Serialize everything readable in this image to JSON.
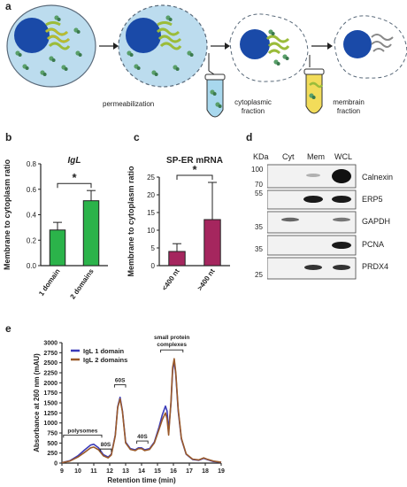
{
  "panels": {
    "a": "a",
    "b": "b",
    "c": "c",
    "d": "d",
    "e": "e"
  },
  "panel_a": {
    "steps": [
      "permeabilization",
      "cytoplasmic fraction",
      "membrain fraction"
    ],
    "colors": {
      "cell": "#bcdcee",
      "nucleus": "#1a4aa8",
      "er": "#9bbc3a",
      "cyto_tube": "#a8d8ee",
      "mem_tube": "#f2dc5a"
    }
  },
  "chart_data": [
    {
      "type": "bar",
      "title": "IgL",
      "ylabel": "Membrane to cytoplasm ratio",
      "categories": [
        "1 domain",
        "2 domains"
      ],
      "values": [
        0.28,
        0.51
      ],
      "errors": [
        0.06,
        0.08
      ],
      "ylim": [
        0,
        0.8
      ],
      "yticks": [
        "0.0",
        "0.2",
        "0.4",
        "0.6",
        "0.8"
      ],
      "significance": "*",
      "color": "#2bb34a"
    },
    {
      "type": "bar",
      "title": "SP-ER mRNA",
      "ylabel": "Membrane to cytoplasm ratio",
      "categories": [
        "<400 nt",
        ">400 nt"
      ],
      "values": [
        4,
        13
      ],
      "errors": [
        2.2,
        10.5
      ],
      "ylim": [
        0,
        25
      ],
      "yticks": [
        "0",
        "5",
        "10",
        "15",
        "20",
        "25"
      ],
      "significance": "*",
      "color": "#a5265e"
    },
    {
      "type": "line",
      "xlabel": "Retention time (min)",
      "ylabel": "Absorbance at 260 nm (mAU)",
      "xlim": [
        9,
        19
      ],
      "ylim": [
        0,
        3000
      ],
      "xticks": [
        "9",
        "10",
        "11",
        "12",
        "13",
        "14",
        "15",
        "16",
        "17",
        "18",
        "19"
      ],
      "yticks": [
        "0",
        "250",
        "500",
        "750",
        "1000",
        "1250",
        "1500",
        "1750",
        "2000",
        "2250",
        "2500",
        "2750",
        "3000"
      ],
      "legend_position": "top-left",
      "series": [
        {
          "name": "IgL 1 domain",
          "color": "#3a3ab8",
          "x": [
            9.0,
            9.5,
            10.0,
            10.4,
            10.8,
            11.0,
            11.3,
            11.6,
            11.9,
            12.1,
            12.35,
            12.5,
            12.65,
            12.8,
            13.0,
            13.3,
            13.6,
            13.8,
            14.0,
            14.2,
            14.5,
            14.8,
            15.1,
            15.3,
            15.5,
            15.6,
            15.7,
            15.85,
            15.95,
            16.05,
            16.15,
            16.3,
            16.5,
            16.8,
            17.2,
            17.6,
            17.9,
            18.1,
            18.5,
            19.0
          ],
          "y": [
            10,
            60,
            180,
            320,
            450,
            470,
            380,
            210,
            150,
            220,
            700,
            1400,
            1640,
            1300,
            520,
            360,
            330,
            380,
            380,
            330,
            360,
            520,
            900,
            1200,
            1420,
            1300,
            800,
            1500,
            2300,
            2550,
            2200,
            1300,
            600,
            220,
            90,
            70,
            120,
            90,
            40,
            20
          ]
        },
        {
          "name": "IgL 2 domains",
          "color": "#9a5a2a",
          "x": [
            9.0,
            9.5,
            10.0,
            10.4,
            10.8,
            11.0,
            11.3,
            11.6,
            11.9,
            12.1,
            12.35,
            12.5,
            12.65,
            12.8,
            13.0,
            13.3,
            13.6,
            13.8,
            14.0,
            14.2,
            14.5,
            14.8,
            15.1,
            15.3,
            15.5,
            15.6,
            15.7,
            15.85,
            15.95,
            16.05,
            16.15,
            16.3,
            16.5,
            16.8,
            17.2,
            17.6,
            17.9,
            18.1,
            18.5,
            19.0
          ],
          "y": [
            10,
            50,
            150,
            260,
            380,
            400,
            330,
            180,
            130,
            200,
            680,
            1380,
            1600,
            1280,
            500,
            340,
            310,
            360,
            360,
            310,
            340,
            500,
            840,
            1080,
            1250,
            1100,
            700,
            1550,
            2380,
            2600,
            2250,
            1350,
            620,
            230,
            100,
            80,
            130,
            100,
            50,
            20
          ]
        }
      ],
      "annotations": [
        "polysomes",
        "80S",
        "60S",
        "40S",
        "small protein complexes"
      ]
    }
  ],
  "western": {
    "kda_label": "KDa",
    "columns": [
      "Cyt",
      "Mem",
      "WCL"
    ],
    "markers": [
      "100",
      "70",
      "55",
      "35",
      "35",
      "25"
    ],
    "proteins": [
      "Calnexin",
      "ERP5",
      "GAPDH",
      "PCNA",
      "PRDX4"
    ]
  },
  "legend_e": {
    "series1": "IgL 1 domain",
    "series2": "IgL 2 domains"
  }
}
